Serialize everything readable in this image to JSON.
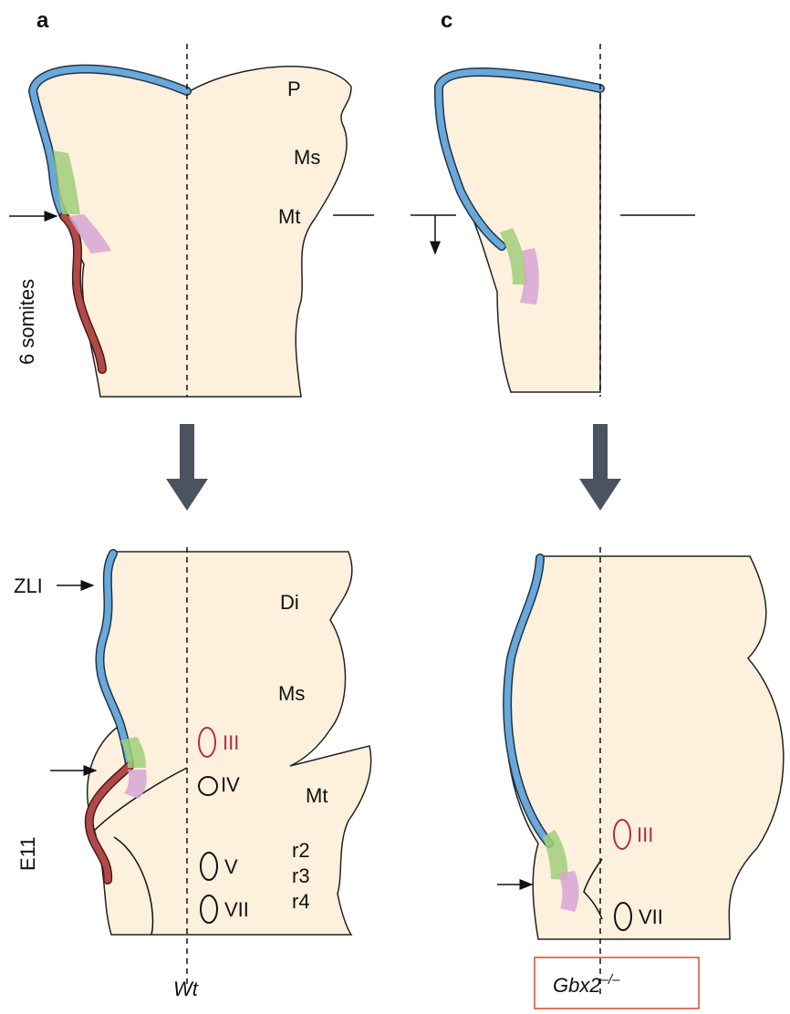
{
  "panel_a": {
    "label": "a",
    "top_labels": [
      "P",
      "Ms",
      "Mt"
    ],
    "stage_top": "6 somites",
    "bottom_labels": [
      "Di",
      "Ms",
      "Mt",
      "r2",
      "r3",
      "r4"
    ],
    "zli": "ZLI",
    "stage_bottom": "E11",
    "nuclei": [
      "III",
      "IV",
      "V",
      "VII"
    ],
    "genotype": "Wt"
  },
  "panel_c": {
    "label": "c",
    "nuclei": [
      "III",
      "VII"
    ],
    "genotype": "Gbx2",
    "genotype_superscript": "–/–"
  }
}
